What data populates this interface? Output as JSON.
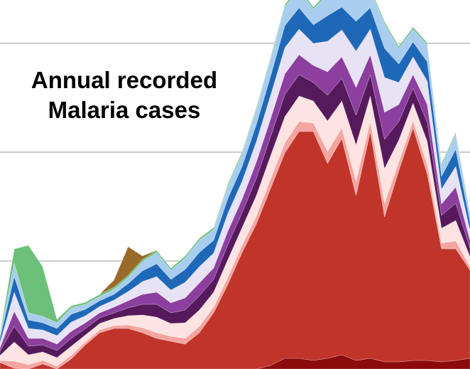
{
  "chart_data": {
    "type": "stacked_area",
    "title": "Annual recorded Malaria cases",
    "categories": [
      null,
      null,
      null,
      null,
      null,
      null,
      null,
      null,
      null,
      null,
      null,
      null,
      null,
      null,
      null,
      null,
      null,
      null,
      null,
      null,
      null,
      null,
      null,
      null,
      null,
      null,
      null,
      null,
      null,
      null,
      null,
      null,
      null,
      null
    ],
    "ylim": [
      0,
      519
    ],
    "yticks": [
      152,
      305,
      458
    ],
    "grid": true,
    "series": [
      {
        "color": "#8b0a0a",
        "values": [
          0,
          0,
          0,
          0,
          0,
          0,
          0,
          0,
          0,
          0,
          0,
          0,
          0,
          0,
          0,
          0,
          0,
          0,
          0,
          5,
          15,
          15,
          12,
          15,
          20,
          12,
          15,
          10,
          10,
          12,
          12,
          10,
          12,
          15
        ]
      },
      {
        "color": "#c0342a",
        "values": [
          9,
          1,
          0,
          7,
          0,
          14,
          34,
          51,
          57,
          57,
          51,
          43,
          39,
          35,
          51,
          79,
          119,
          164,
          204,
          249,
          289,
          319,
          322,
          274,
          304,
          232,
          319,
          204,
          269,
          327,
          262,
          159,
          157,
          124
        ]
      },
      {
        "color": "#f4a5a0",
        "values": [
          3,
          10,
          6,
          5,
          4,
          5,
          4,
          4,
          4,
          5,
          7,
          8,
          7,
          8,
          9,
          8,
          10,
          10,
          11,
          13,
          14,
          14,
          12,
          17,
          15,
          20,
          14,
          19,
          12,
          10,
          13,
          8,
          11,
          5
        ]
      },
      {
        "color": "#fde3e1",
        "values": [
          7,
          27,
          14,
          12,
          12,
          13,
          10,
          9,
          10,
          13,
          18,
          22,
          18,
          22,
          23,
          21,
          25,
          25,
          29,
          33,
          37,
          36,
          31,
          43,
          38,
          51,
          36,
          49,
          31,
          25,
          33,
          21,
          29,
          14
        ]
      },
      {
        "color": "#561a5c",
        "values": [
          6,
          22,
          12,
          10,
          10,
          11,
          9,
          8,
          8,
          11,
          15,
          18,
          15,
          18,
          20,
          18,
          21,
          21,
          24,
          27,
          31,
          30,
          26,
          36,
          32,
          42,
          30,
          41,
          26,
          21,
          27,
          18,
          24,
          12
        ]
      },
      {
        "color": "#8c3f9e",
        "values": [
          5,
          21,
          11,
          9,
          9,
          10,
          8,
          7,
          8,
          10,
          14,
          17,
          14,
          17,
          18,
          16,
          19,
          19,
          23,
          25,
          29,
          28,
          24,
          33,
          30,
          39,
          28,
          38,
          24,
          19,
          25,
          16,
          23,
          11
        ]
      },
      {
        "color": "#e8e2f5",
        "values": [
          7,
          27,
          14,
          12,
          12,
          13,
          10,
          9,
          10,
          13,
          18,
          22,
          18,
          22,
          23,
          21,
          25,
          25,
          29,
          33,
          37,
          36,
          31,
          43,
          38,
          51,
          36,
          49,
          31,
          25,
          33,
          21,
          29,
          14
        ]
      },
      {
        "color": "#1f68b8",
        "values": [
          6,
          22,
          12,
          10,
          10,
          11,
          9,
          8,
          8,
          11,
          15,
          18,
          15,
          18,
          20,
          18,
          21,
          21,
          24,
          27,
          31,
          30,
          26,
          36,
          32,
          42,
          30,
          41,
          26,
          21,
          27,
          18,
          24,
          12
        ]
      },
      {
        "color": "#a9cdef",
        "values": [
          5,
          19,
          10,
          9,
          8,
          9,
          7,
          6,
          7,
          9,
          13,
          16,
          13,
          16,
          17,
          15,
          18,
          18,
          21,
          24,
          27,
          26,
          22,
          31,
          28,
          37,
          26,
          35,
          22,
          18,
          24,
          15,
          21,
          10
        ]
      },
      {
        "color": "#6cc07a",
        "values": [
          3,
          20,
          95,
          70,
          5,
          3,
          3,
          3,
          3,
          3,
          3,
          3,
          3,
          3,
          3,
          3,
          3,
          3,
          3,
          3,
          3,
          3,
          3,
          3,
          3,
          3,
          3,
          3,
          3,
          3,
          3,
          3,
          3,
          3
        ]
      },
      {
        "color": "#9a6a2a",
        "values": [
          0,
          0,
          0,
          0,
          0,
          0,
          0,
          0,
          10,
          40,
          5,
          0,
          0,
          0,
          0,
          0,
          0,
          0,
          0,
          0,
          0,
          0,
          0,
          0,
          0,
          0,
          0,
          0,
          0,
          0,
          0,
          0,
          0,
          0
        ]
      }
    ]
  }
}
